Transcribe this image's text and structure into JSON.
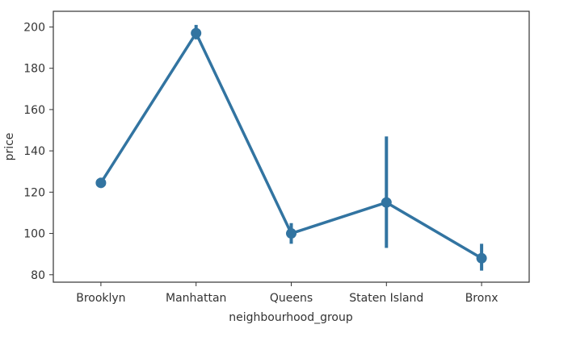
{
  "chart_data": {
    "type": "line",
    "title": "",
    "xlabel": "neighbourhood_group",
    "ylabel": "price",
    "categories": [
      "Brooklyn",
      "Manhattan",
      "Queens",
      "Staten Island",
      "Bronx"
    ],
    "series": [
      {
        "values": [
          124.5,
          197.0,
          100.0,
          115.0,
          88.0
        ],
        "ci_low": [
          123.0,
          194.0,
          95.0,
          93.0,
          82.0
        ],
        "ci_high": [
          127.0,
          201.0,
          105.0,
          147.0,
          95.0
        ]
      }
    ],
    "ylim": [
      76.4,
      207.6
    ],
    "yticks": [
      80,
      100,
      120,
      140,
      160,
      180,
      200
    ],
    "ytick_labels": [
      "80",
      "100",
      "120",
      "140",
      "160",
      "180",
      "200"
    ],
    "grid": false,
    "legend": "none",
    "colors": {
      "series": "#3274a1",
      "axes": "#333333",
      "text": "#333333",
      "background": "#ffffff"
    }
  }
}
